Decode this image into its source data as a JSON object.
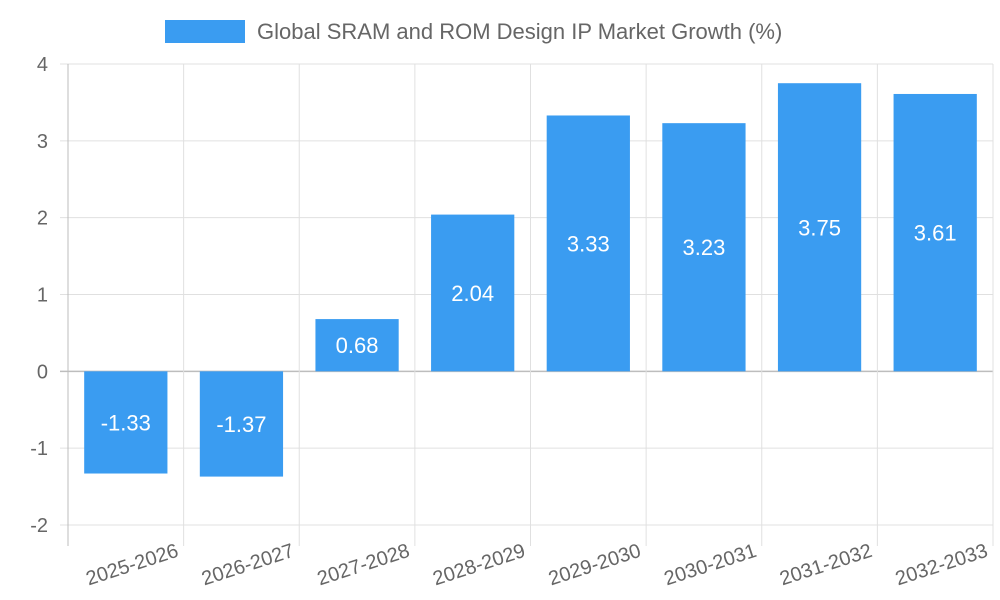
{
  "chart_data": {
    "type": "bar",
    "title": "",
    "xlabel": "",
    "ylabel": "",
    "categories": [
      "2025-2026",
      "2026-2027",
      "2027-2028",
      "2028-2029",
      "2029-2030",
      "2030-2031",
      "2031-2032",
      "2032-2033"
    ],
    "series": [
      {
        "name": "Global SRAM and ROM Design IP Market Growth (%)",
        "values": [
          -1.33,
          -1.37,
          0.68,
          2.04,
          3.33,
          3.23,
          3.75,
          3.61
        ],
        "color": "#3a9cf1"
      }
    ],
    "data_labels": [
      "-1.33",
      "-1.37",
      "0.68",
      "2.04",
      "3.33",
      "3.23",
      "3.75",
      "3.61"
    ],
    "ylim": [
      -2,
      4
    ],
    "yticks": [
      -2,
      -1,
      0,
      1,
      2,
      3,
      4
    ],
    "ytick_labels": [
      "-2",
      "-1",
      "0",
      "1",
      "2",
      "3",
      "4"
    ],
    "grid": true,
    "legend_position": "top-center"
  },
  "colors": {
    "bar": "#3a9cf1",
    "grid": "#e0e0e0",
    "axis": "#cccccc",
    "tick_text": "#666666",
    "label_text": "#ffffff"
  }
}
